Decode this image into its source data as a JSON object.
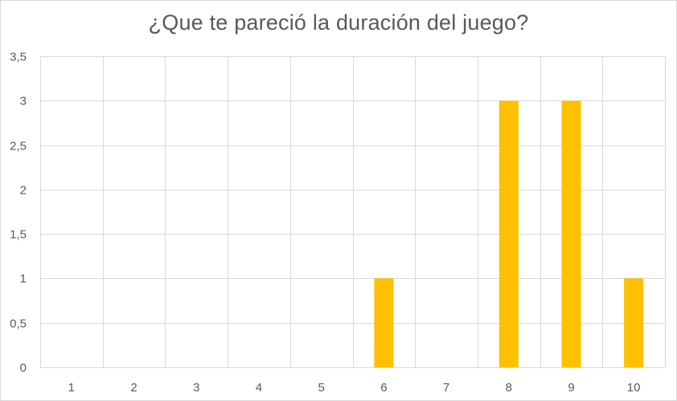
{
  "chart_data": {
    "type": "bar",
    "title": "¿Que te pareció la duración del juego?",
    "categories": [
      "1",
      "2",
      "3",
      "4",
      "5",
      "6",
      "7",
      "8",
      "9",
      "10"
    ],
    "values": [
      0,
      0,
      0,
      0,
      0,
      1,
      0,
      3,
      3,
      1
    ],
    "ylim": [
      0,
      3.5
    ],
    "yticks": [
      "0",
      "0,5",
      "1",
      "1,5",
      "2",
      "2,5",
      "3",
      "3,5"
    ],
    "xlabel": "",
    "ylabel": "",
    "grid": true,
    "legend": "none",
    "colors": {
      "bar": "#FFC000",
      "grid": "#d9d9d9",
      "text": "#595959"
    }
  }
}
